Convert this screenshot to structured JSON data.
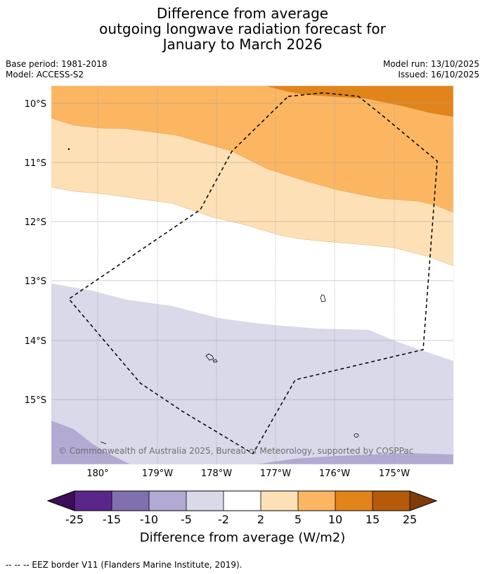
{
  "title": {
    "line1": "Difference from average",
    "line2": "outgoing longwave radiation forecast for",
    "line3": "January to March 2026"
  },
  "meta": {
    "base_period": "Base period: 1981-2018",
    "model": "Model: ACCESS-S2",
    "model_run": "Model run: 13/10/2025",
    "issued": "Issued: 16/10/2025"
  },
  "map": {
    "lat_labels": [
      "10°S",
      "11°S",
      "12°S",
      "13°S",
      "14°S",
      "15°S"
    ],
    "lon_labels": [
      "180°",
      "179°W",
      "178°W",
      "177°W",
      "176°W",
      "175°W"
    ],
    "copyright": "© Commonwealth of Australia 2025, Bureau of Meteorology, supported by COSPPac"
  },
  "colorbar": {
    "tick_labels": [
      "-25",
      "-15",
      "-10",
      "-5",
      "-2",
      "2",
      "5",
      "10",
      "15",
      "25"
    ],
    "label": "Difference from average (W/m2)",
    "colors": {
      "lt_-25": "#3e0d57",
      "-25_-15": "#5a2689",
      "-15_-10": "#8070ad",
      "-10_-5": "#b2aad2",
      "-5_-2": "#d9d9ea",
      "-2_2": "#ffffff",
      "2_5": "#fde0b5",
      "5_10": "#fcb661",
      "10_15": "#e1841a",
      "15_25": "#b45a09",
      "gt_25": "#7f3b08"
    }
  },
  "legend": {
    "eez_note": "--  --  -- EEZ border V11 (Flanders Marine Institute, 2019)."
  }
}
